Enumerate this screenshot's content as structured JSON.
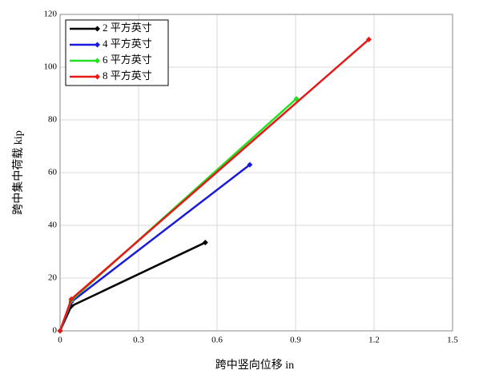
{
  "chart_data": {
    "type": "line",
    "x_label": "跨中竖向位移 in",
    "y_label": "跨中集中荷载 kip",
    "xlim": [
      0,
      1.5
    ],
    "xticks": [
      0,
      0.3,
      0.6,
      0.9,
      1.2,
      1.5
    ],
    "ylim": [
      0,
      120
    ],
    "yticks": [
      0,
      20,
      40,
      60,
      80,
      100,
      120
    ],
    "grid": true,
    "legend": "upper left",
    "series": [
      {
        "name": "2 平方英寸",
        "color": "#000000",
        "x": [
          0,
          0.043,
          0.555
        ],
        "values": [
          0,
          9.4,
          33.5
        ]
      },
      {
        "name": "4 平方英寸",
        "color": "#1a1adc",
        "x": [
          0,
          0.043,
          0.725
        ],
        "values": [
          0,
          11,
          63
        ]
      },
      {
        "name": "6 平方英寸",
        "color": "#22e022",
        "x": [
          0,
          0.043,
          0.903
        ],
        "values": [
          0,
          11.5,
          88
        ]
      },
      {
        "name": "8 平方英寸",
        "color": "#e81818",
        "x": [
          0,
          0.043,
          1.18
        ],
        "values": [
          0,
          12,
          110.5
        ]
      }
    ]
  }
}
